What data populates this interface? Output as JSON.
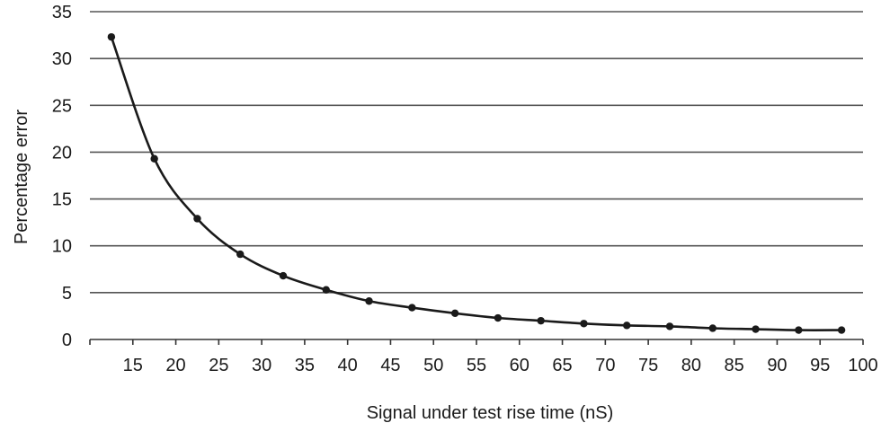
{
  "chart_data": {
    "type": "line",
    "title": "",
    "xlabel": "Signal under test rise time (nS)",
    "ylabel": "Percentage error",
    "xlim": [
      10,
      100
    ],
    "ylim": [
      0,
      35
    ],
    "xticks": [
      15,
      20,
      25,
      30,
      35,
      40,
      45,
      50,
      55,
      60,
      65,
      70,
      75,
      80,
      85,
      90,
      95,
      100
    ],
    "yticks": [
      0,
      5,
      10,
      15,
      20,
      25,
      30,
      35
    ],
    "grid": "horizontal",
    "legend": "none",
    "series": [
      {
        "x": [
          12.5,
          17.5,
          22.5,
          27.5,
          32.5,
          37.5,
          42.5,
          47.5,
          52.5,
          57.5,
          62.5,
          67.5,
          72.5,
          77.5,
          82.5,
          87.5,
          92.5,
          97.5
        ],
        "values": [
          32.3,
          19.3,
          12.9,
          9.1,
          6.8,
          5.3,
          4.1,
          3.4,
          2.8,
          2.3,
          2.0,
          1.7,
          1.5,
          1.4,
          1.2,
          1.1,
          1.0,
          1.0
        ]
      }
    ],
    "colors": {
      "line": "#1a1a1a",
      "grid": "#555555"
    }
  }
}
